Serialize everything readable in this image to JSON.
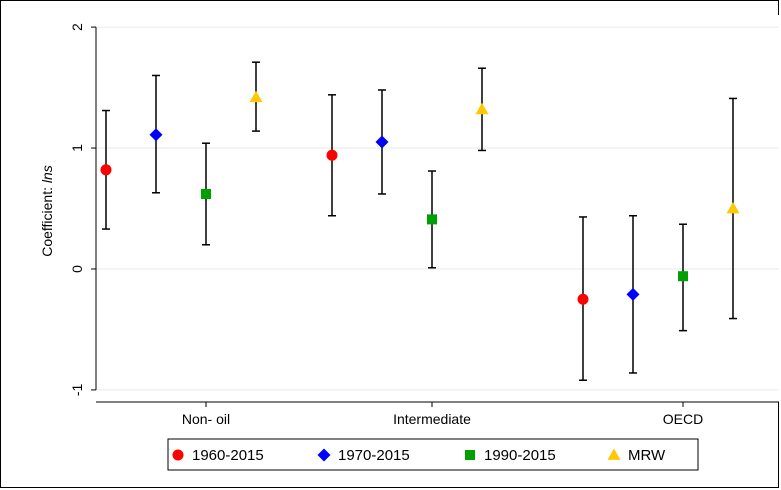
{
  "chart_data": {
    "type": "scatter",
    "categories": [
      "Non- oil",
      "Intermediate",
      "OECD"
    ],
    "ylabel": "Coefficient: lns",
    "ylabel_prefix": "Coefficient: ",
    "ylabel_italic": "lns",
    "ylim": [
      -1.1,
      2.1
    ],
    "yticks": [
      -1,
      0,
      1,
      2
    ],
    "yticklabels": [
      "-1",
      "0",
      "1",
      "2"
    ],
    "grid": true,
    "legend_position": "bottom",
    "series": [
      {
        "name": "1960-2015",
        "color": "#ff0000",
        "marker": "circle",
        "values": [
          0.82,
          0.94,
          -0.25
        ],
        "lower": [
          0.33,
          0.44,
          -0.92
        ],
        "upper": [
          1.31,
          1.44,
          0.43
        ]
      },
      {
        "name": "1970-2015",
        "color": "#0000ff",
        "marker": "diamond",
        "values": [
          1.11,
          1.05,
          -0.21
        ],
        "lower": [
          0.63,
          0.62,
          -0.86
        ],
        "upper": [
          1.6,
          1.48,
          0.44
        ]
      },
      {
        "name": "1990-2015",
        "color": "#00a000",
        "marker": "square",
        "values": [
          0.62,
          0.41,
          -0.06
        ],
        "lower": [
          0.2,
          0.01,
          -0.51
        ],
        "upper": [
          1.04,
          0.81,
          0.37
        ]
      },
      {
        "name": "MRW",
        "color": "#ffc800",
        "marker": "triangle",
        "values": [
          1.42,
          1.32,
          0.5
        ],
        "lower": [
          1.14,
          0.98,
          -0.41
        ],
        "upper": [
          1.71,
          1.66,
          1.41
        ]
      }
    ]
  }
}
